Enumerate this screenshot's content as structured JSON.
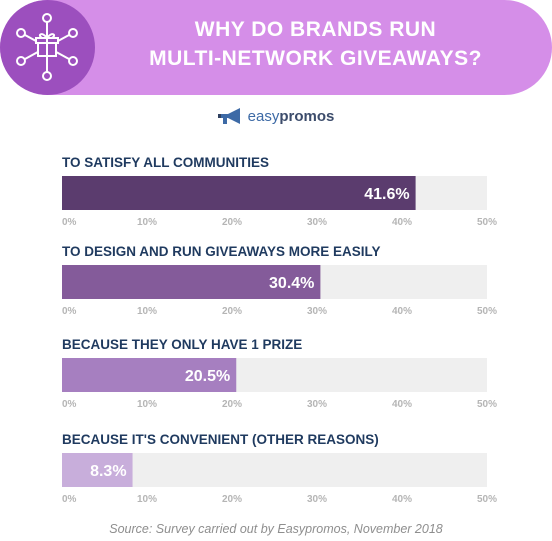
{
  "header": {
    "title_line1": "WHY DO BRANDS RUN",
    "title_line2": "MULTI-NETWORK GIVEAWAYS?",
    "icon": "gift-network-icon",
    "banner_color": "#d58ee8",
    "badge_color": "#9c4fbe"
  },
  "logo": {
    "icon": "megaphone-icon",
    "text_part1": "easy",
    "text_part2": "promos"
  },
  "chart_data": {
    "type": "bar",
    "orientation": "horizontal",
    "categories": [
      "TO SATISFY ALL COMMUNITIES",
      "TO DESIGN AND RUN GIVEAWAYS MORE EASILY",
      "BECAUSE THEY ONLY HAVE 1 PRIZE",
      "BECAUSE IT'S CONVENIENT (OTHER REASONS)"
    ],
    "values": [
      41.6,
      30.4,
      20.5,
      8.3
    ],
    "value_labels": [
      "41.6%",
      "30.4%",
      "20.5%",
      "8.3%"
    ],
    "xlim": [
      0,
      50
    ],
    "ticks": [
      "0%",
      "10%",
      "20%",
      "30%",
      "40%",
      "50%"
    ],
    "bar_colors": [
      "#5b3c6e",
      "#845b9a",
      "#a67fc0",
      "#c8aedb"
    ],
    "track_color": "#efefef",
    "label_color": "#1f3a5f",
    "tick_color": "#b5b5b5"
  },
  "footer": {
    "source": "Source: Survey carried out by Easypromos, November 2018"
  }
}
